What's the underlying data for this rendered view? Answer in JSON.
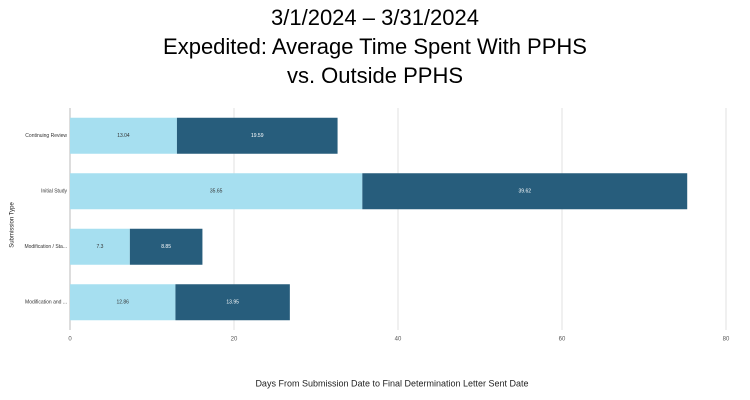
{
  "chart_data": {
    "type": "stacked-bar-horizontal",
    "title": [
      "3/1/2024 – 3/31/2024",
      "Expedited: Average Time Spent With PPHS",
      "vs. Outside PPHS"
    ],
    "x_label": "Days From Submission Date to Final Determination Letter Sent Date",
    "y_label": "Submission Type",
    "categories": [
      "Continuing Review",
      "Initial Study",
      "Modification / Sta...",
      "Modification and ..."
    ],
    "series": [
      {
        "color": "#a6dff0",
        "values": [
          13.04,
          35.65,
          7.3,
          12.86
        ]
      },
      {
        "color": "#275d7c",
        "values": [
          19.59,
          39.62,
          8.85,
          13.95
        ]
      }
    ],
    "xlim": [
      0,
      80
    ],
    "xticks": [
      0,
      20,
      40,
      60,
      80
    ],
    "grid": true
  }
}
